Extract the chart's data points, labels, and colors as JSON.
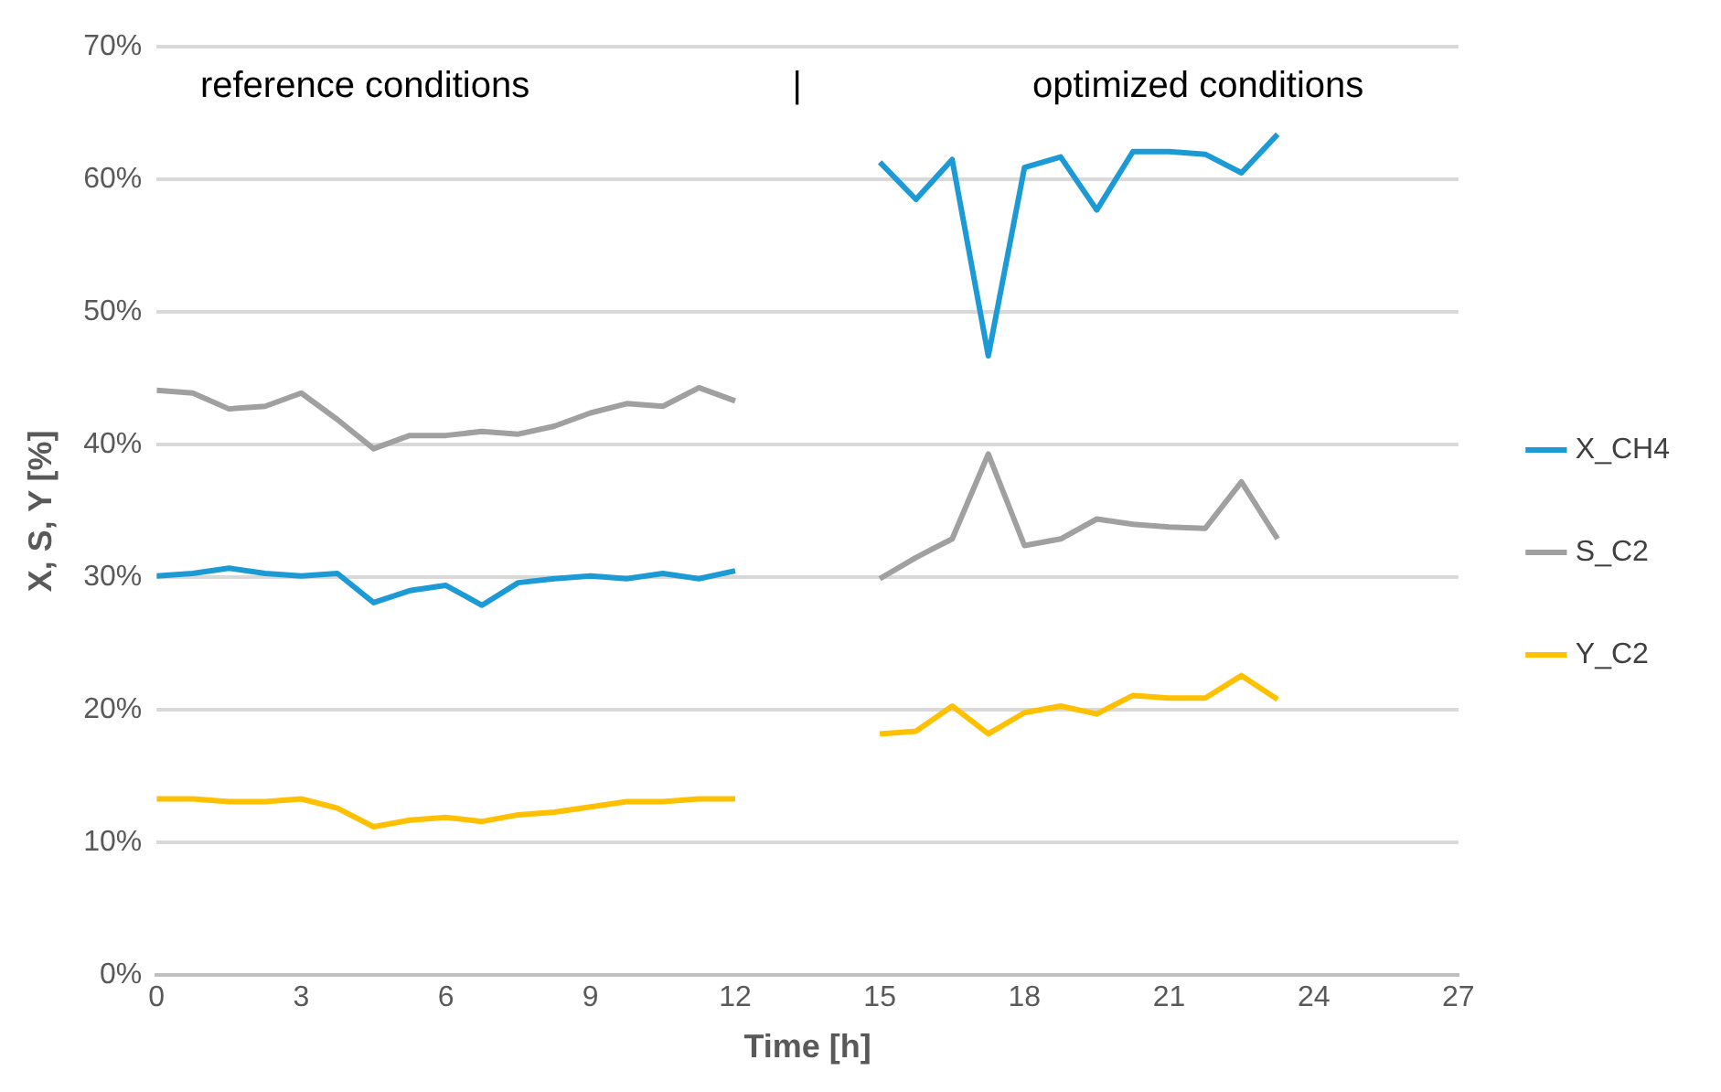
{
  "chart_data": {
    "type": "line",
    "xlabel": "Time [h]",
    "ylabel": "X, S, Y [%]",
    "annotations": [
      "reference conditions",
      "|",
      "optimized conditions"
    ],
    "x": [
      0,
      0.75,
      1.5,
      2.25,
      3,
      3.75,
      4.5,
      5.25,
      6,
      6.75,
      7.5,
      8.25,
      9,
      9.75,
      10.5,
      11.25,
      12,
      13.5,
      15,
      15.75,
      16.5,
      17.25,
      18,
      18.75,
      19.5,
      20.25,
      21,
      21.75,
      22.5,
      23.25
    ],
    "series": [
      {
        "name": "X_CH4",
        "color": "#1b9ad6",
        "values": [
          30.1,
          30.3,
          30.7,
          30.3,
          30.1,
          30.3,
          28.1,
          29.0,
          29.4,
          27.9,
          29.6,
          29.9,
          30.1,
          29.9,
          30.3,
          29.9,
          30.5,
          null,
          61.3,
          58.5,
          61.5,
          46.7,
          60.9,
          61.7,
          57.7,
          62.1,
          62.1,
          61.9,
          60.5,
          63.4
        ]
      },
      {
        "name": "S_C2",
        "color": "#a0a0a0",
        "values": [
          44.1,
          43.9,
          42.7,
          42.9,
          43.9,
          41.9,
          39.7,
          40.7,
          40.7,
          41.0,
          40.8,
          41.4,
          42.4,
          43.1,
          42.9,
          44.3,
          43.3,
          null,
          29.9,
          31.5,
          32.9,
          39.3,
          32.4,
          32.9,
          34.4,
          34.0,
          33.8,
          33.7,
          37.2,
          32.9
        ]
      },
      {
        "name": "Y_C2",
        "color": "#ffc000",
        "values": [
          13.3,
          13.3,
          13.1,
          13.1,
          13.3,
          12.6,
          11.2,
          11.7,
          11.9,
          11.6,
          12.1,
          12.3,
          12.7,
          13.1,
          13.1,
          13.3,
          13.3,
          null,
          18.2,
          18.4,
          20.3,
          18.2,
          19.8,
          20.3,
          19.7,
          21.1,
          20.9,
          20.9,
          22.6,
          20.8
        ]
      }
    ],
    "xlim": [
      0,
      27
    ],
    "xticks": [
      0,
      3,
      6,
      9,
      12,
      15,
      18,
      21,
      24,
      27
    ],
    "ylim": [
      0,
      70
    ],
    "yticks": [
      {
        "value": 0,
        "label": "0%"
      },
      {
        "value": 10,
        "label": "10%"
      },
      {
        "value": 20,
        "label": "20%"
      },
      {
        "value": 30,
        "label": "30%"
      },
      {
        "value": 40,
        "label": "40%"
      },
      {
        "value": 50,
        "label": "50%"
      },
      {
        "value": 60,
        "label": "60%"
      },
      {
        "value": 70,
        "label": "70%"
      }
    ],
    "grid": "y",
    "legend": "right",
    "marker": "none",
    "line_style": "solid"
  }
}
